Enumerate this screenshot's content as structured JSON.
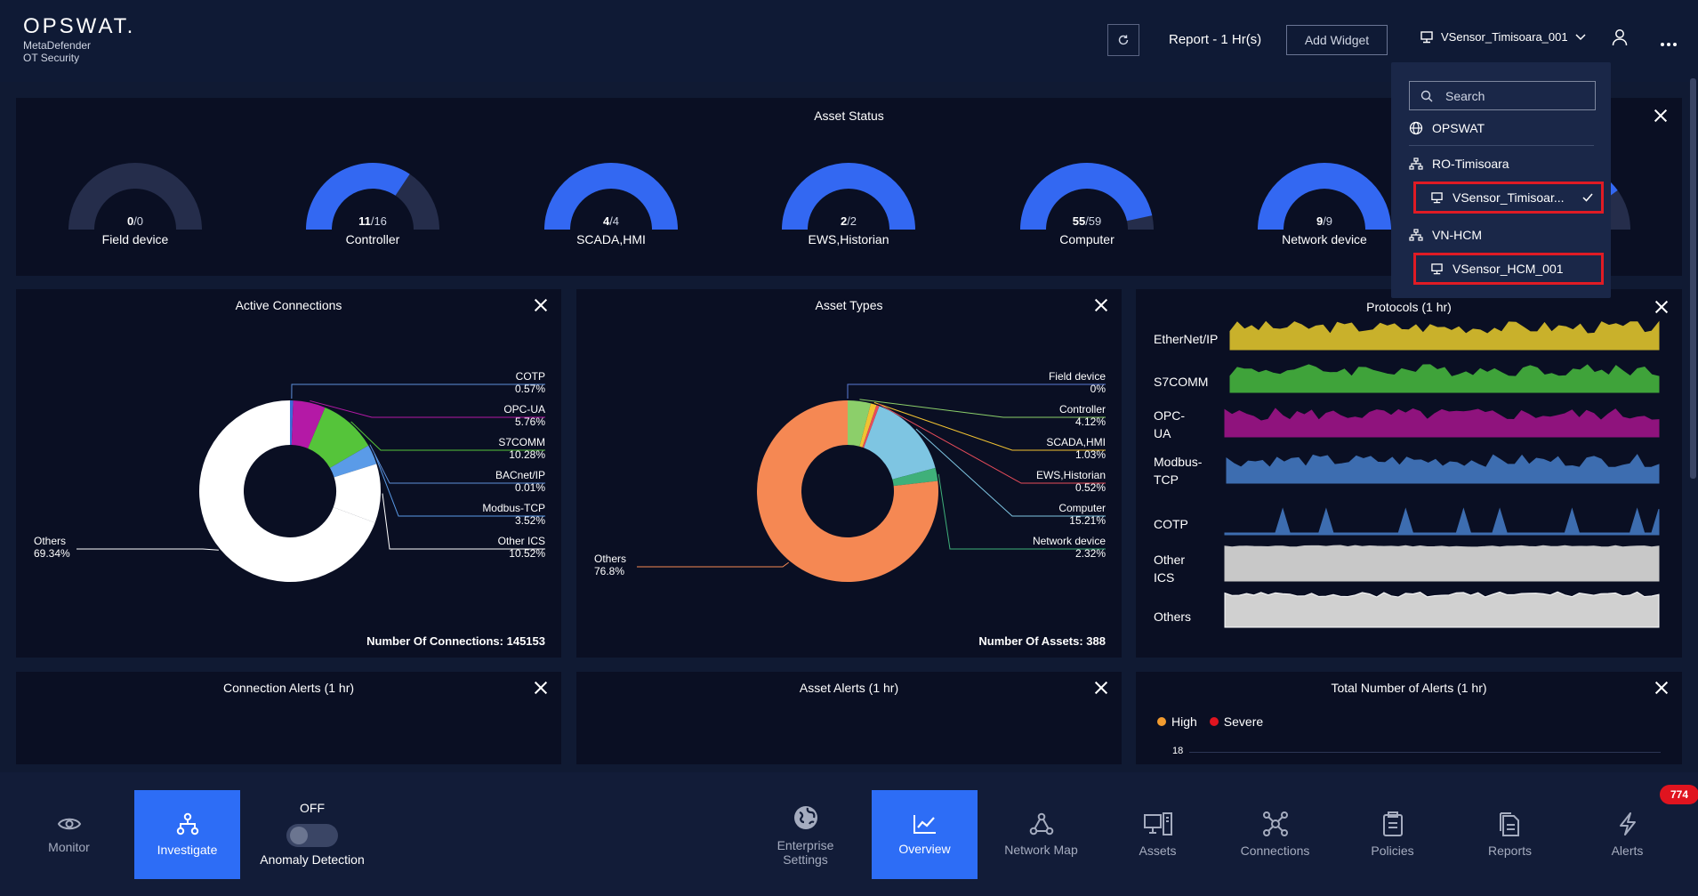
{
  "header": {
    "logo": "OPSWAT.",
    "product_line1": "MetaDefender",
    "product_line2": "OT Security",
    "report_label": "Report - 1 Hr(s)",
    "add_widget_label": "Add Widget",
    "selected_sensor": "VSensor_Timisoara_001"
  },
  "dropdown": {
    "search_placeholder": "Search",
    "root": "OPSWAT",
    "site1": "RO-Timisoara",
    "site1_sensor": "VSensor_Timisoar...",
    "site2": "VN-HCM",
    "site2_sensor": "VSensor_HCM_001"
  },
  "asset_status": {
    "title": "Asset Status",
    "gauges": [
      {
        "label": "Field device",
        "num": "0",
        "den": "0",
        "value": 0,
        "total": 0
      },
      {
        "label": "Controller",
        "num": "11",
        "den": "16",
        "value": 11,
        "total": 16
      },
      {
        "label": "SCADA,HMI",
        "num": "4",
        "den": "4",
        "value": 4,
        "total": 4
      },
      {
        "label": "EWS,Historian",
        "num": "2",
        "den": "2",
        "value": 2,
        "total": 2
      },
      {
        "label": "Computer",
        "num": "55",
        "den": "59",
        "value": 55,
        "total": 59
      },
      {
        "label": "Network device",
        "num": "9",
        "den": "9",
        "value": 9,
        "total": 9
      },
      {
        "label": "",
        "num": "",
        "den": "",
        "value": 0.8,
        "total": 1
      }
    ]
  },
  "active_connections": {
    "title": "Active Connections",
    "footer_label": "Number Of Connections:",
    "footer_value": "145153",
    "slices": [
      {
        "name": "COTP",
        "pct": "0.57%",
        "value": 0.57,
        "color": "#3b6bd8"
      },
      {
        "name": "OPC-UA",
        "pct": "5.76%",
        "value": 5.76,
        "color": "#b419a6"
      },
      {
        "name": "S7COMM",
        "pct": "10.28%",
        "value": 10.28,
        "color": "#55c43a"
      },
      {
        "name": "BACnet/IP",
        "pct": "0.01%",
        "value": 0.01,
        "color": "#e8b52a"
      },
      {
        "name": "Modbus-TCP",
        "pct": "3.52%",
        "value": 3.52,
        "color": "#5a9be8"
      },
      {
        "name": "Other ICS",
        "pct": "10.52%",
        "value": 10.52,
        "color": "#ffffff"
      },
      {
        "name": "Others",
        "pct": "69.34%",
        "value": 69.34,
        "color": "#ffffff"
      }
    ]
  },
  "asset_types": {
    "title": "Asset Types",
    "footer_label": "Number Of Assets:",
    "footer_value": "388",
    "slices": [
      {
        "name": "Field device",
        "pct": "0%",
        "value": 0,
        "color": "#5b7bd6"
      },
      {
        "name": "Controller",
        "pct": "4.12%",
        "value": 4.12,
        "color": "#8ccf6a"
      },
      {
        "name": "SCADA,HMI",
        "pct": "1.03%",
        "value": 1.03,
        "color": "#f1c232"
      },
      {
        "name": "EWS,Historian",
        "pct": "0.52%",
        "value": 0.52,
        "color": "#e84c5a"
      },
      {
        "name": "Computer",
        "pct": "15.21%",
        "value": 15.21,
        "color": "#7ec5e2"
      },
      {
        "name": "Network device",
        "pct": "2.32%",
        "value": 2.32,
        "color": "#3fb07a"
      },
      {
        "name": "Others",
        "pct": "76.8%",
        "value": 76.8,
        "color": "#f58853"
      }
    ]
  },
  "protocols": {
    "title": "Protocols (1 hr)",
    "rows": [
      {
        "label_line1": "EtherNet/IP",
        "label_line2": "",
        "color": "#c9b12b"
      },
      {
        "label_line1": "S7COMM",
        "label_line2": "",
        "color": "#3fa33a"
      },
      {
        "label_line1": "OPC-",
        "label_line2": "UA",
        "color": "#8f137d"
      },
      {
        "label_line1": "Modbus-",
        "label_line2": "TCP",
        "color": "#3d6db0"
      },
      {
        "label_line1": "COTP",
        "label_line2": "",
        "color": "#3d6db0"
      },
      {
        "label_line1": "Other",
        "label_line2": "ICS",
        "color": "#c8c8c8"
      },
      {
        "label_line1": "Others",
        "label_line2": "",
        "color": "#d0d0d0"
      }
    ]
  },
  "connection_alerts": {
    "title": "Connection Alerts (1 hr)"
  },
  "asset_alerts": {
    "title": "Asset Alerts (1 hr)"
  },
  "total_alerts": {
    "title": "Total Number of Alerts (1 hr)",
    "legend_high": "High",
    "legend_severe": "Severe",
    "high_color": "#f29b2f",
    "severe_color": "#e0141f",
    "y_tick": "18"
  },
  "nav": {
    "monitor": "Monitor",
    "investigate": "Investigate",
    "anomaly_state": "OFF",
    "anomaly_label": "Anomaly Detection",
    "enterprise_line1": "Enterprise",
    "enterprise_line2": "Settings",
    "overview": "Overview",
    "network_map": "Network Map",
    "assets": "Assets",
    "connections": "Connections",
    "policies": "Policies",
    "reports": "Reports",
    "alerts": "Alerts",
    "alerts_badge": "774"
  }
}
